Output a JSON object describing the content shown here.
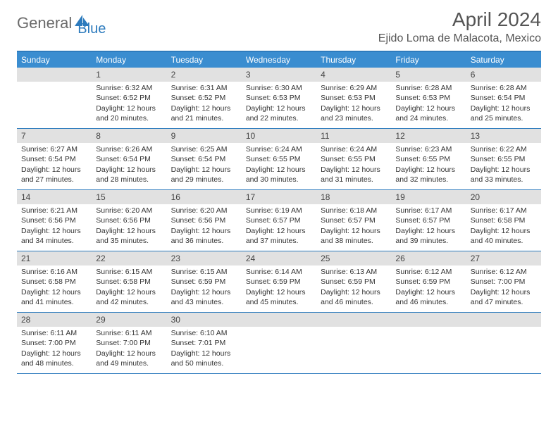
{
  "logo": {
    "general": "General",
    "blue": "Blue"
  },
  "title": "April 2024",
  "location": "Ejido Loma de Malacota, Mexico",
  "dayHeaders": [
    "Sunday",
    "Monday",
    "Tuesday",
    "Wednesday",
    "Thursday",
    "Friday",
    "Saturday"
  ],
  "colors": {
    "accent": "#3a8dd0",
    "border": "#2d7bbd",
    "dayNumBg": "#e1e1e1",
    "text": "#333333",
    "titleText": "#555555"
  },
  "weeks": [
    [
      {
        "n": "",
        "sunrise": "",
        "sunset": "",
        "daylight": ""
      },
      {
        "n": "1",
        "sunrise": "Sunrise: 6:32 AM",
        "sunset": "Sunset: 6:52 PM",
        "daylight": "Daylight: 12 hours and 20 minutes."
      },
      {
        "n": "2",
        "sunrise": "Sunrise: 6:31 AM",
        "sunset": "Sunset: 6:52 PM",
        "daylight": "Daylight: 12 hours and 21 minutes."
      },
      {
        "n": "3",
        "sunrise": "Sunrise: 6:30 AM",
        "sunset": "Sunset: 6:53 PM",
        "daylight": "Daylight: 12 hours and 22 minutes."
      },
      {
        "n": "4",
        "sunrise": "Sunrise: 6:29 AM",
        "sunset": "Sunset: 6:53 PM",
        "daylight": "Daylight: 12 hours and 23 minutes."
      },
      {
        "n": "5",
        "sunrise": "Sunrise: 6:28 AM",
        "sunset": "Sunset: 6:53 PM",
        "daylight": "Daylight: 12 hours and 24 minutes."
      },
      {
        "n": "6",
        "sunrise": "Sunrise: 6:28 AM",
        "sunset": "Sunset: 6:54 PM",
        "daylight": "Daylight: 12 hours and 25 minutes."
      }
    ],
    [
      {
        "n": "7",
        "sunrise": "Sunrise: 6:27 AM",
        "sunset": "Sunset: 6:54 PM",
        "daylight": "Daylight: 12 hours and 27 minutes."
      },
      {
        "n": "8",
        "sunrise": "Sunrise: 6:26 AM",
        "sunset": "Sunset: 6:54 PM",
        "daylight": "Daylight: 12 hours and 28 minutes."
      },
      {
        "n": "9",
        "sunrise": "Sunrise: 6:25 AM",
        "sunset": "Sunset: 6:54 PM",
        "daylight": "Daylight: 12 hours and 29 minutes."
      },
      {
        "n": "10",
        "sunrise": "Sunrise: 6:24 AM",
        "sunset": "Sunset: 6:55 PM",
        "daylight": "Daylight: 12 hours and 30 minutes."
      },
      {
        "n": "11",
        "sunrise": "Sunrise: 6:24 AM",
        "sunset": "Sunset: 6:55 PM",
        "daylight": "Daylight: 12 hours and 31 minutes."
      },
      {
        "n": "12",
        "sunrise": "Sunrise: 6:23 AM",
        "sunset": "Sunset: 6:55 PM",
        "daylight": "Daylight: 12 hours and 32 minutes."
      },
      {
        "n": "13",
        "sunrise": "Sunrise: 6:22 AM",
        "sunset": "Sunset: 6:55 PM",
        "daylight": "Daylight: 12 hours and 33 minutes."
      }
    ],
    [
      {
        "n": "14",
        "sunrise": "Sunrise: 6:21 AM",
        "sunset": "Sunset: 6:56 PM",
        "daylight": "Daylight: 12 hours and 34 minutes."
      },
      {
        "n": "15",
        "sunrise": "Sunrise: 6:20 AM",
        "sunset": "Sunset: 6:56 PM",
        "daylight": "Daylight: 12 hours and 35 minutes."
      },
      {
        "n": "16",
        "sunrise": "Sunrise: 6:20 AM",
        "sunset": "Sunset: 6:56 PM",
        "daylight": "Daylight: 12 hours and 36 minutes."
      },
      {
        "n": "17",
        "sunrise": "Sunrise: 6:19 AM",
        "sunset": "Sunset: 6:57 PM",
        "daylight": "Daylight: 12 hours and 37 minutes."
      },
      {
        "n": "18",
        "sunrise": "Sunrise: 6:18 AM",
        "sunset": "Sunset: 6:57 PM",
        "daylight": "Daylight: 12 hours and 38 minutes."
      },
      {
        "n": "19",
        "sunrise": "Sunrise: 6:17 AM",
        "sunset": "Sunset: 6:57 PM",
        "daylight": "Daylight: 12 hours and 39 minutes."
      },
      {
        "n": "20",
        "sunrise": "Sunrise: 6:17 AM",
        "sunset": "Sunset: 6:58 PM",
        "daylight": "Daylight: 12 hours and 40 minutes."
      }
    ],
    [
      {
        "n": "21",
        "sunrise": "Sunrise: 6:16 AM",
        "sunset": "Sunset: 6:58 PM",
        "daylight": "Daylight: 12 hours and 41 minutes."
      },
      {
        "n": "22",
        "sunrise": "Sunrise: 6:15 AM",
        "sunset": "Sunset: 6:58 PM",
        "daylight": "Daylight: 12 hours and 42 minutes."
      },
      {
        "n": "23",
        "sunrise": "Sunrise: 6:15 AM",
        "sunset": "Sunset: 6:59 PM",
        "daylight": "Daylight: 12 hours and 43 minutes."
      },
      {
        "n": "24",
        "sunrise": "Sunrise: 6:14 AM",
        "sunset": "Sunset: 6:59 PM",
        "daylight": "Daylight: 12 hours and 45 minutes."
      },
      {
        "n": "25",
        "sunrise": "Sunrise: 6:13 AM",
        "sunset": "Sunset: 6:59 PM",
        "daylight": "Daylight: 12 hours and 46 minutes."
      },
      {
        "n": "26",
        "sunrise": "Sunrise: 6:12 AM",
        "sunset": "Sunset: 6:59 PM",
        "daylight": "Daylight: 12 hours and 46 minutes."
      },
      {
        "n": "27",
        "sunrise": "Sunrise: 6:12 AM",
        "sunset": "Sunset: 7:00 PM",
        "daylight": "Daylight: 12 hours and 47 minutes."
      }
    ],
    [
      {
        "n": "28",
        "sunrise": "Sunrise: 6:11 AM",
        "sunset": "Sunset: 7:00 PM",
        "daylight": "Daylight: 12 hours and 48 minutes."
      },
      {
        "n": "29",
        "sunrise": "Sunrise: 6:11 AM",
        "sunset": "Sunset: 7:00 PM",
        "daylight": "Daylight: 12 hours and 49 minutes."
      },
      {
        "n": "30",
        "sunrise": "Sunrise: 6:10 AM",
        "sunset": "Sunset: 7:01 PM",
        "daylight": "Daylight: 12 hours and 50 minutes."
      },
      {
        "n": "",
        "sunrise": "",
        "sunset": "",
        "daylight": ""
      },
      {
        "n": "",
        "sunrise": "",
        "sunset": "",
        "daylight": ""
      },
      {
        "n": "",
        "sunrise": "",
        "sunset": "",
        "daylight": ""
      },
      {
        "n": "",
        "sunrise": "",
        "sunset": "",
        "daylight": ""
      }
    ]
  ]
}
